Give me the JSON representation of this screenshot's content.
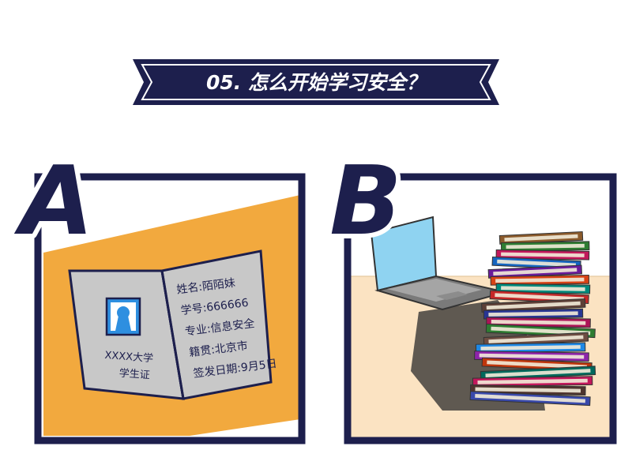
{
  "banner": {
    "title": "05. 怎么开始学习安全？"
  },
  "panel_a": {
    "letter": "A",
    "card": {
      "school": "XXXX大学",
      "card_type": "学生证",
      "fields": [
        {
          "label": "姓名",
          "value": "陌陌妹"
        },
        {
          "label": "学号",
          "value": "666666"
        },
        {
          "label": "专业",
          "value": "信息安全"
        },
        {
          "label": "籍贯",
          "value": "北京市"
        },
        {
          "label": "签发日期",
          "value": "9月5日"
        }
      ]
    }
  },
  "panel_b": {
    "letter": "B"
  },
  "colors": {
    "navy": "#1d1f4d",
    "orange": "#f2a93e",
    "card_gray": "#c8c8c8",
    "laptop_screen": "#8fd3f1",
    "desk": "#fbe3c2"
  }
}
